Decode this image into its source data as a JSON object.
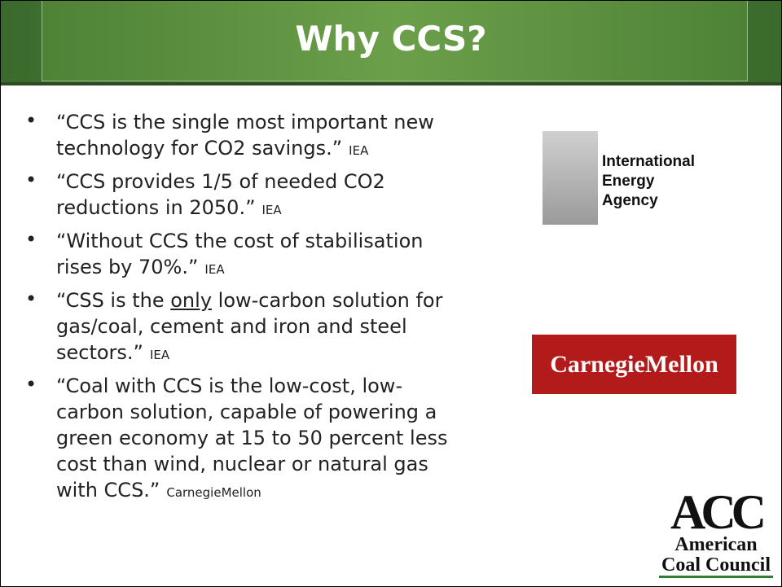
{
  "header": {
    "title": "Why CCS?"
  },
  "bullets": [
    {
      "lines": [
        "“CCS is the single most important new",
        "technology for CO2 savings.”"
      ],
      "source": "IEA"
    },
    {
      "lines": [
        "“CCS provides 1/5 of needed CO2",
        "reductions in 2050.”"
      ],
      "source": "IEA"
    },
    {
      "lines": [
        "“Without CCS the cost of stabilisation",
        "rises by 70%.”"
      ],
      "source": "IEA"
    },
    {
      "first_line": {
        "before": "“CSS is the ",
        "underlined": "only",
        "after": " low-carbon solution for"
      },
      "lines": [
        "gas/coal, cement and iron and steel",
        "sectors.”"
      ],
      "source": "IEA"
    },
    {
      "lines": [
        "“Coal with CCS is the low-cost, low-",
        "carbon solution, capable of powering a",
        "green economy at 15 to 50 percent less",
        "cost than wind, nuclear or natural gas",
        "with CCS.”"
      ],
      "source": "CarnegieMellon"
    }
  ],
  "logos": {
    "iea": {
      "lines": [
        "International",
        "Energy",
        "Agency"
      ]
    },
    "cmu": {
      "text": "CarnegieMellon"
    },
    "acc": {
      "mark": "ACC",
      "lines": [
        "American",
        "Coal Council"
      ]
    }
  }
}
